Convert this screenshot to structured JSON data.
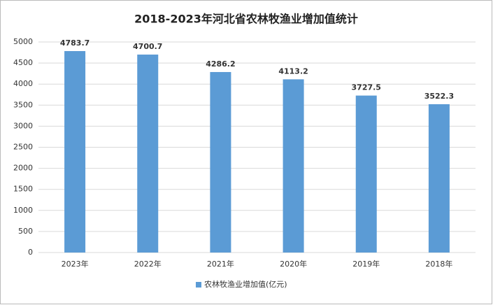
{
  "chart_data": {
    "type": "bar",
    "title": "2018-2023年河北省农林牧渔业增加值统计",
    "categories": [
      "2023年",
      "2022年",
      "2021年",
      "2020年",
      "2019年",
      "2018年"
    ],
    "series": [
      {
        "name": "农林牧渔业增加值(亿元)",
        "color": "#5b9bd5",
        "values": [
          4783.7,
          4700.7,
          4286.2,
          4113.2,
          3727.5,
          3522.3
        ]
      }
    ],
    "ylim": [
      0,
      5000
    ],
    "yticks": [
      0,
      500,
      1000,
      1500,
      2000,
      2500,
      3000,
      3500,
      4000,
      4500,
      5000
    ],
    "grid": true,
    "legend": "bottom"
  }
}
